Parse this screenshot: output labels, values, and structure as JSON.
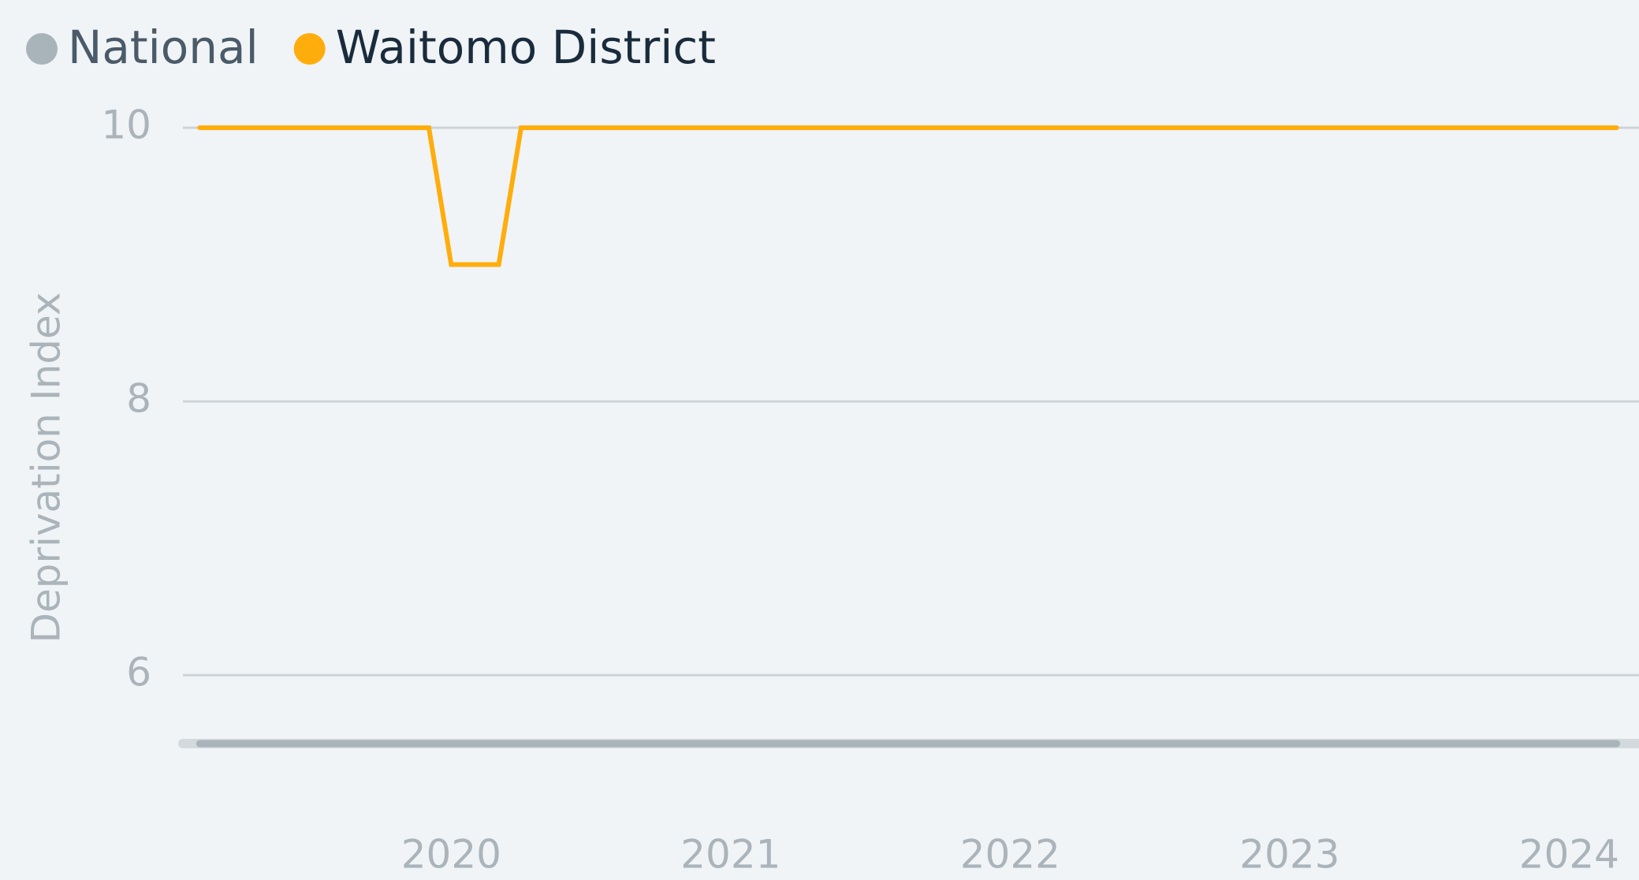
{
  "chart_data": {
    "type": "line",
    "y_label": "Deprivation Index",
    "x": [
      2019.1,
      2019.92,
      2020.0,
      2020.17,
      2020.25,
      2024.17
    ],
    "series": [
      {
        "name": "National",
        "color": "#a9b4ba",
        "values": [
          5.5,
          5.5,
          5.5,
          5.5,
          5.5,
          5.5
        ]
      },
      {
        "name": "Waitomo District",
        "color": "#ffad0d",
        "values": [
          10,
          10,
          9,
          9,
          10,
          10
        ]
      }
    ],
    "xlim": [
      2019.04,
      2024.25
    ],
    "xticks": [
      2020,
      2021,
      2022,
      2023,
      2024
    ],
    "ylim": [
      5.5,
      10
    ],
    "yticks": [
      6,
      8,
      10
    ],
    "grid": true,
    "legend": "top-left"
  }
}
